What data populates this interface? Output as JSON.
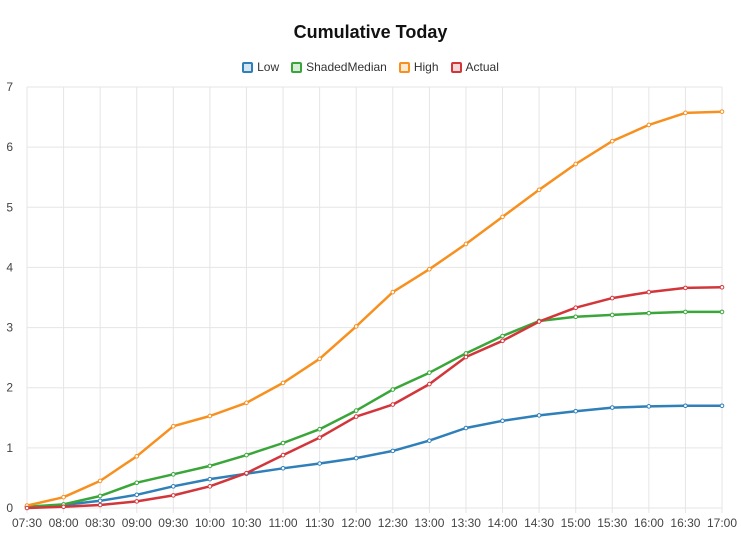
{
  "chart_data": {
    "type": "line",
    "title": "Cumulative Today",
    "xlabel": "",
    "ylabel": "",
    "ylim": [
      0,
      7
    ],
    "yticks": [
      "0",
      "1",
      "2",
      "3",
      "4",
      "5",
      "6",
      "7"
    ],
    "grid": true,
    "legend_position": "top-center",
    "categories": [
      "07:30",
      "08:00",
      "08:30",
      "09:00",
      "09:30",
      "10:00",
      "10:30",
      "11:00",
      "11:30",
      "12:00",
      "12:30",
      "13:00",
      "13:30",
      "14:00",
      "14:30",
      "15:00",
      "15:30",
      "16:00",
      "16:30",
      "17:00"
    ],
    "series": [
      {
        "name": "Low",
        "color": "#2f7fb9",
        "values": [
          0.02,
          0.05,
          0.12,
          0.22,
          0.36,
          0.48,
          0.57,
          0.66,
          0.74,
          0.83,
          0.95,
          1.12,
          1.33,
          1.45,
          1.54,
          1.61,
          1.67,
          1.69,
          1.7,
          1.7
        ]
      },
      {
        "name": "ShadedMedian",
        "color": "#3aa63a",
        "values": [
          0.02,
          0.06,
          0.2,
          0.42,
          0.56,
          0.7,
          0.88,
          1.08,
          1.31,
          1.62,
          1.97,
          2.25,
          2.57,
          2.86,
          3.11,
          3.18,
          3.21,
          3.24,
          3.26,
          3.26
        ]
      },
      {
        "name": "High",
        "color": "#f7901e",
        "values": [
          0.04,
          0.18,
          0.45,
          0.86,
          1.36,
          1.53,
          1.75,
          2.08,
          2.48,
          3.02,
          3.59,
          3.97,
          4.39,
          4.84,
          5.29,
          5.72,
          6.1,
          6.37,
          6.57,
          6.59
        ]
      },
      {
        "name": "Actual",
        "color": "#d2363b",
        "values": [
          0.0,
          0.02,
          0.05,
          0.11,
          0.21,
          0.36,
          0.58,
          0.88,
          1.17,
          1.52,
          1.72,
          2.06,
          2.51,
          2.78,
          3.1,
          3.33,
          3.49,
          3.59,
          3.66,
          3.67
        ]
      }
    ]
  }
}
